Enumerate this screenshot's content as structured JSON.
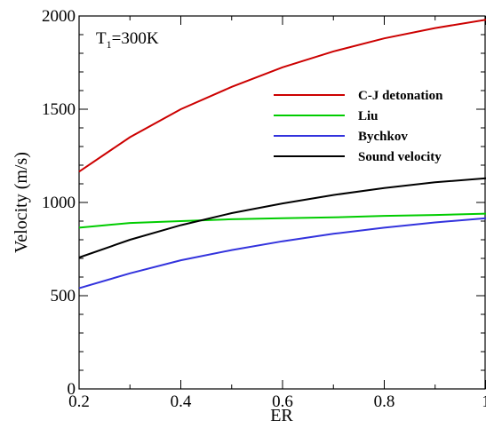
{
  "chart_data": {
    "type": "line",
    "xlabel": "ER",
    "ylabel": "Velocity (m/s)",
    "xlim": [
      0.2,
      1.0
    ],
    "ylim": [
      0,
      2000
    ],
    "x_ticks": [
      "0.2",
      "0.4",
      "0.6",
      "0.8",
      "1"
    ],
    "y_ticks": [
      "0",
      "500",
      "1000",
      "1500",
      "2000"
    ],
    "grid": false,
    "legend_position": "top-right",
    "annotation": {
      "main": "T",
      "sub": "1",
      "rest": "=300K"
    },
    "x": [
      0.2,
      0.3,
      0.4,
      0.5,
      0.6,
      0.7,
      0.8,
      0.9,
      1.0
    ],
    "series": [
      {
        "name": "C-J detonation",
        "color": "#cc0000",
        "values": [
          1165,
          1350,
          1500,
          1620,
          1725,
          1810,
          1880,
          1935,
          1980
        ]
      },
      {
        "name": "Liu",
        "color": "#00cc00",
        "values": [
          865,
          890,
          900,
          910,
          915,
          920,
          928,
          933,
          940
        ]
      },
      {
        "name": "Bychkov",
        "color": "#3333dd",
        "values": [
          540,
          620,
          690,
          745,
          792,
          832,
          865,
          893,
          915
        ]
      },
      {
        "name": "Sound velocity",
        "color": "#000000",
        "values": [
          705,
          800,
          878,
          943,
          995,
          1040,
          1077,
          1108,
          1130
        ]
      }
    ]
  }
}
